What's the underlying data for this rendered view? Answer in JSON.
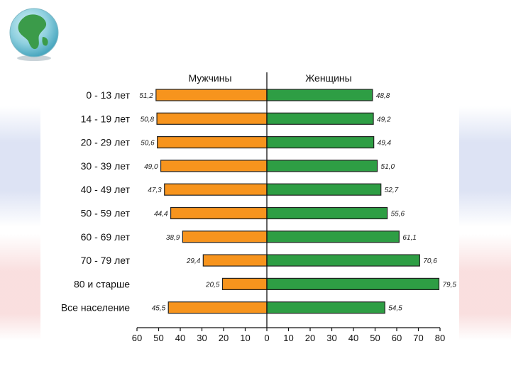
{
  "chart_data": {
    "type": "bar",
    "orientation": "horizontal-butterfly",
    "series": [
      {
        "name": "Мужчины",
        "color": "#f7941d",
        "values": [
          51.2,
          50.8,
          50.6,
          49.0,
          47.3,
          44.4,
          38.9,
          29.4,
          20.5,
          45.5
        ],
        "labels": [
          "51,2",
          "50,8",
          "50,6",
          "49,0",
          "47,3",
          "44,4",
          "38,9",
          "29,4",
          "20,5",
          "45,5"
        ]
      },
      {
        "name": "Женщины",
        "color": "#2e9e44",
        "values": [
          48.8,
          49.2,
          49.4,
          51.0,
          52.7,
          55.6,
          61.1,
          70.6,
          79.5,
          54.5
        ],
        "labels": [
          "48,8",
          "49,2",
          "49,4",
          "51,0",
          "52,7",
          "55,6",
          "61,1",
          "70,6",
          "79,5",
          "54,5"
        ]
      }
    ],
    "categories": [
      "0 - 13 лет",
      "14 - 19 лет",
      "20 - 29 лет",
      "30 - 39 лет",
      "40 - 49 лет",
      "50 - 59 лет",
      "60 - 69 лет",
      "70 - 79 лет",
      "80 и старше",
      "Все население"
    ],
    "xlim": [
      -60,
      80
    ],
    "xticks": [
      "60",
      "50",
      "40",
      "30",
      "20",
      "10",
      "0",
      "10",
      "20",
      "30",
      "40",
      "50",
      "60",
      "70",
      "80"
    ],
    "grid": false,
    "legend": "top"
  },
  "decor": {
    "globe": "globe-icon"
  }
}
